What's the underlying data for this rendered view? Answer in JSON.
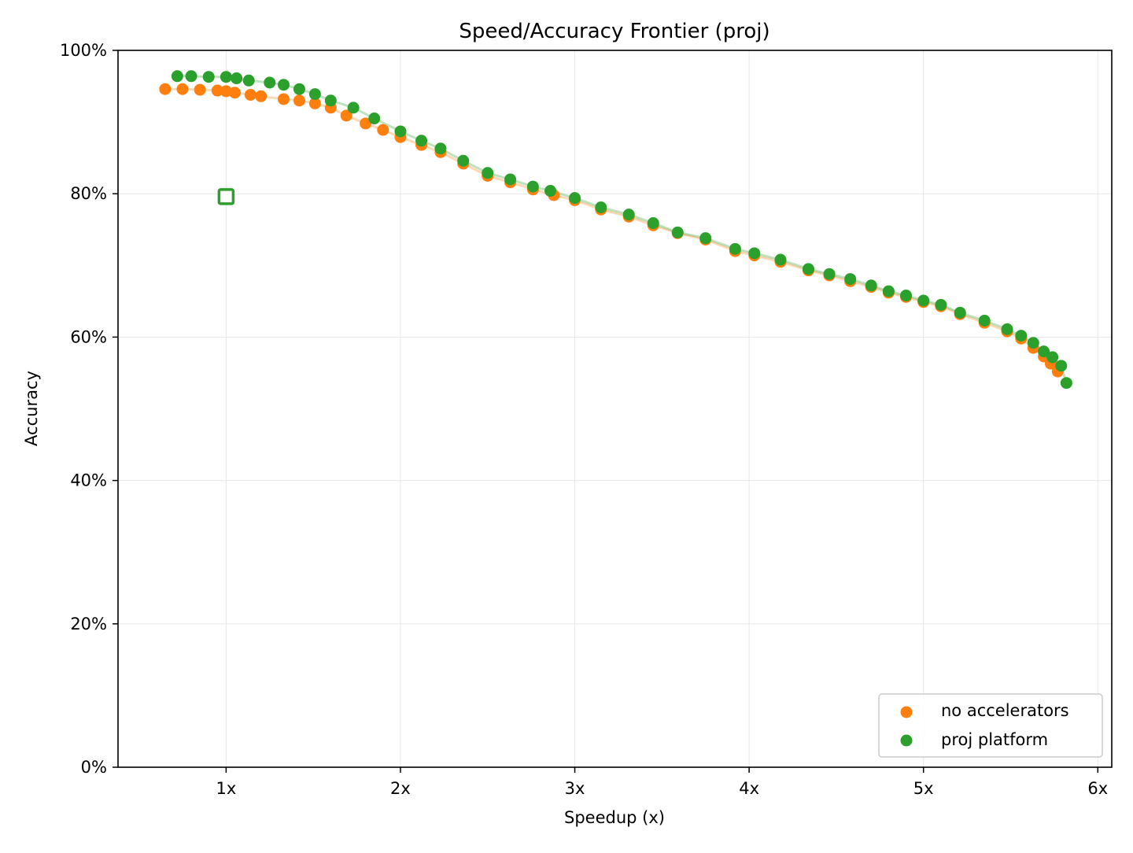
{
  "chart_data": {
    "type": "scatter",
    "title": "Speed/Accuracy Frontier (proj)",
    "xlabel": "Speedup (x)",
    "ylabel": "Accuracy",
    "xlim": [
      0.38,
      6.08
    ],
    "ylim": [
      0,
      100
    ],
    "x_ticks": [
      1,
      2,
      3,
      4,
      5,
      6
    ],
    "x_tick_labels": [
      "1x",
      "2x",
      "3x",
      "4x",
      "5x",
      "6x"
    ],
    "y_ticks": [
      0,
      20,
      40,
      60,
      80,
      100
    ],
    "y_tick_labels": [
      "0%",
      "20%",
      "40%",
      "60%",
      "80%",
      "100%"
    ],
    "grid": true,
    "legend_position": "bottom-right",
    "series": [
      {
        "name": "no accelerators",
        "color": "#ff7f0e",
        "x": [
          0.65,
          0.75,
          0.85,
          0.95,
          1.0,
          1.05,
          1.14,
          1.2,
          1.33,
          1.42,
          1.51,
          1.6,
          1.69,
          1.8,
          1.9,
          2.0,
          2.12,
          2.23,
          2.36,
          2.5,
          2.63,
          2.76,
          2.88,
          3.0,
          3.15,
          3.31,
          3.45,
          3.59,
          3.75,
          3.92,
          4.03,
          4.18,
          4.34,
          4.46,
          4.58,
          4.7,
          4.8,
          4.9,
          5.0,
          5.1,
          5.21,
          5.35,
          5.48,
          5.56,
          5.63,
          5.69,
          5.73,
          5.77
        ],
        "y": [
          94.6,
          94.6,
          94.5,
          94.4,
          94.3,
          94.1,
          93.8,
          93.6,
          93.2,
          93.0,
          92.6,
          92.0,
          90.9,
          89.8,
          88.9,
          87.9,
          86.8,
          85.8,
          84.2,
          82.5,
          81.6,
          80.6,
          79.8,
          79.1,
          77.8,
          76.8,
          75.6,
          74.5,
          73.6,
          72.0,
          71.4,
          70.5,
          69.3,
          68.6,
          67.8,
          67.0,
          66.2,
          65.6,
          64.9,
          64.3,
          63.2,
          62.0,
          60.8,
          59.8,
          58.5,
          57.3,
          56.3,
          55.2
        ]
      },
      {
        "name": "proj platform",
        "color": "#2ca02c",
        "x": [
          0.72,
          0.8,
          0.9,
          1.0,
          1.06,
          1.13,
          1.25,
          1.33,
          1.42,
          1.51,
          1.6,
          1.73,
          1.85,
          2.0,
          2.12,
          2.23,
          2.36,
          2.5,
          2.63,
          2.76,
          2.86,
          3.0,
          3.15,
          3.31,
          3.45,
          3.59,
          3.75,
          3.92,
          4.03,
          4.18,
          4.34,
          4.46,
          4.58,
          4.7,
          4.8,
          4.9,
          5.0,
          5.1,
          5.21,
          5.35,
          5.48,
          5.56,
          5.63,
          5.69,
          5.74,
          5.79,
          5.82
        ],
        "y": [
          96.4,
          96.4,
          96.3,
          96.3,
          96.1,
          95.8,
          95.5,
          95.2,
          94.6,
          93.9,
          93.0,
          92.0,
          90.5,
          88.7,
          87.4,
          86.3,
          84.6,
          82.9,
          82.0,
          81.0,
          80.4,
          79.4,
          78.1,
          77.1,
          75.9,
          74.6,
          73.8,
          72.3,
          71.7,
          70.8,
          69.5,
          68.8,
          68.1,
          67.2,
          66.4,
          65.8,
          65.1,
          64.5,
          63.4,
          62.3,
          61.1,
          60.2,
          59.2,
          58.0,
          57.2,
          56.0,
          53.6
        ]
      }
    ],
    "baseline_marker": {
      "x": 1.0,
      "y": 79.6,
      "color": "#2ca02c",
      "shape": "hollow-square"
    }
  }
}
